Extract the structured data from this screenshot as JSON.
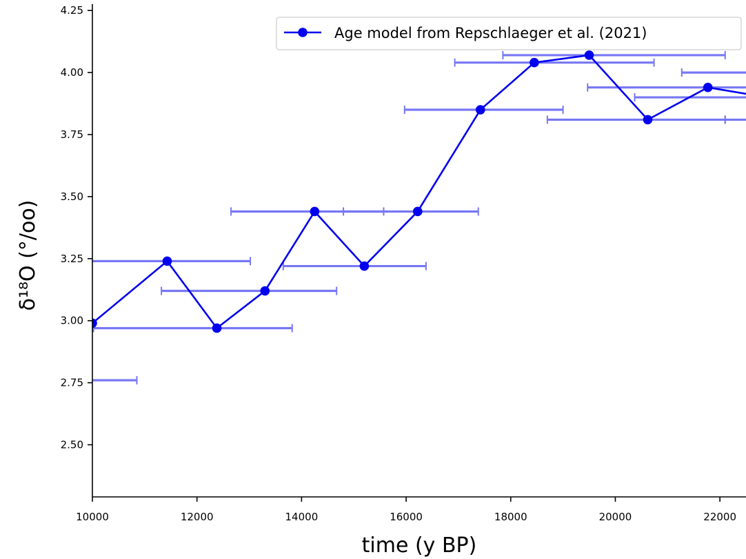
{
  "chart_data": {
    "type": "line",
    "title": "",
    "xlabel": "time (y BP)",
    "ylabel": "δ¹⁸O (°/oo)",
    "xlim": [
      10000,
      23000
    ],
    "ylim": [
      2.29,
      4.27
    ],
    "x_ticks": [
      10000,
      12000,
      14000,
      16000,
      18000,
      20000,
      22000
    ],
    "x_tick_labels": [
      "10000",
      "12000",
      "14000",
      "16000",
      "18000",
      "20000",
      "22000"
    ],
    "y_ticks": [
      2.5,
      2.75,
      3.0,
      3.25,
      3.5,
      3.75,
      4.0,
      4.25
    ],
    "y_tick_labels": [
      "2.50",
      "2.75",
      "3.00",
      "3.25",
      "3.50",
      "3.75",
      "4.00",
      "4.25"
    ],
    "grid": false,
    "legend": {
      "position": "top-right"
    },
    "colors": {
      "line": "#0000ee",
      "errorbar": "#7777f5"
    },
    "series": [
      {
        "name": "Age model from Repschlaeger et al. (2021)",
        "points": [
          {
            "x": 10000,
            "y": 2.99
          },
          {
            "x": 11430,
            "y": 3.24
          },
          {
            "x": 12380,
            "y": 2.97
          },
          {
            "x": 13300,
            "y": 3.12
          },
          {
            "x": 14250,
            "y": 3.44
          },
          {
            "x": 15200,
            "y": 3.22
          },
          {
            "x": 16220,
            "y": 3.44
          },
          {
            "x": 17420,
            "y": 3.85
          },
          {
            "x": 18450,
            "y": 4.04
          },
          {
            "x": 19500,
            "y": 4.07
          },
          {
            "x": 20620,
            "y": 3.81
          },
          {
            "x": 21770,
            "y": 3.94
          },
          {
            "x": 22900,
            "y": 3.9
          }
        ]
      }
    ],
    "error_bars": [
      {
        "y": 2.76,
        "x_min": 9500,
        "x_max": 10850
      },
      {
        "y": 2.97,
        "x_min": 10020,
        "x_max": 13820
      },
      {
        "y": 3.12,
        "x_min": 11320,
        "x_max": 14670
      },
      {
        "y": 3.24,
        "x_min": 9800,
        "x_max": 13020
      },
      {
        "y": 3.22,
        "x_min": 13650,
        "x_max": 16380
      },
      {
        "y": 3.44,
        "x_min": 12650,
        "x_max": 15570
      },
      {
        "y": 3.44,
        "x_min": 14800,
        "x_max": 17380
      },
      {
        "y": 3.85,
        "x_min": 15970,
        "x_max": 19000
      },
      {
        "y": 3.81,
        "x_min": 18700,
        "x_max": 22100
      },
      {
        "y": 3.81,
        "x_min": 22100,
        "x_max": 23500
      },
      {
        "y": 3.9,
        "x_min": 20370,
        "x_max": 23500
      },
      {
        "y": 3.94,
        "x_min": 19470,
        "x_max": 23500
      },
      {
        "y": 4.0,
        "x_min": 21270,
        "x_max": 23500
      },
      {
        "y": 4.04,
        "x_min": 16930,
        "x_max": 20740
      },
      {
        "y": 4.07,
        "x_min": 17850,
        "x_max": 22100
      }
    ]
  }
}
